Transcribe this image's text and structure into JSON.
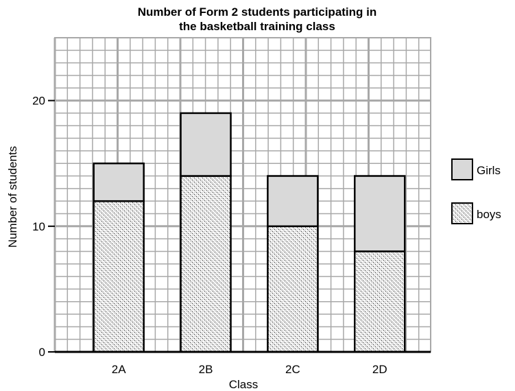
{
  "chart_data": {
    "type": "bar",
    "stacked": true,
    "title": "Number of Form 2 students participating in the basketball training class",
    "title_lines": [
      "Number of Form 2 students participating in",
      "the basketball training class"
    ],
    "xlabel": "Class",
    "ylabel": "Number of students",
    "categories": [
      "2A",
      "2B",
      "2C",
      "2D"
    ],
    "series": [
      {
        "name": "boys",
        "values": [
          12,
          14,
          10,
          8
        ],
        "color": "#ffffff",
        "pattern": "dotted-hatch"
      },
      {
        "name": "Girls",
        "values": [
          3,
          5,
          4,
          6
        ],
        "color": "#d9d9d9",
        "pattern": "solid"
      }
    ],
    "totals": [
      15,
      19,
      14,
      14
    ],
    "ylim": [
      0,
      25
    ],
    "yticks": [
      0,
      10,
      20
    ],
    "grid": true,
    "grid_color": "#a8a8a8",
    "legend_position": "right",
    "legend_order": [
      "Girls",
      "boys"
    ]
  }
}
